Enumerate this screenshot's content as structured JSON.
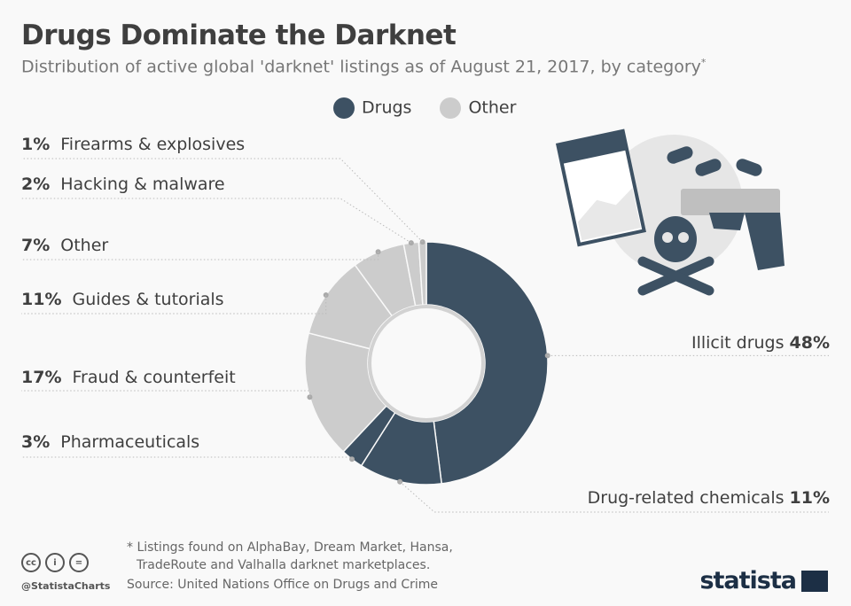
{
  "title": "Drugs Dominate the Darknet",
  "subtitle": "Distribution of active global 'darknet' listings as of August 21, 2017, by category",
  "subtitle_mark": "*",
  "legend": [
    {
      "label": "Drugs",
      "color": "#3d5163"
    },
    {
      "label": "Other",
      "color": "#cccccc"
    }
  ],
  "chart_data": {
    "type": "pie",
    "donut": true,
    "title": "Drugs Dominate the Darknet",
    "legend_position": "top",
    "slices": [
      {
        "label": "Illicit drugs",
        "value": 48,
        "display": "48%",
        "group": "Drugs"
      },
      {
        "label": "Drug-related chemicals",
        "value": 11,
        "display": "11%",
        "group": "Drugs"
      },
      {
        "label": "Pharmaceuticals",
        "value": 3,
        "display": "3%",
        "group": "Drugs"
      },
      {
        "label": "Fraud & counterfeit",
        "value": 17,
        "display": "17%",
        "group": "Other"
      },
      {
        "label": "Guides & tutorials",
        "value": 11,
        "display": "11%",
        "group": "Other"
      },
      {
        "label": "Other",
        "value": 7,
        "display": "7%",
        "group": "Other"
      },
      {
        "label": "Hacking & malware",
        "value": 2,
        "display": "2%",
        "group": "Other"
      },
      {
        "label": "Firearms & explosives",
        "value": 1,
        "display": "1%",
        "group": "Other"
      }
    ]
  },
  "footer": {
    "note": "* Listings found on AlphaBay, Dream Market, Hansa,",
    "note2": "TradeRoute and Valhalla darknet marketplaces.",
    "source": "Source: United Nations Office on Drugs and Crime",
    "handle": "@StatistaCharts",
    "logo": "statista",
    "cc": [
      "cc",
      "i",
      "="
    ]
  }
}
